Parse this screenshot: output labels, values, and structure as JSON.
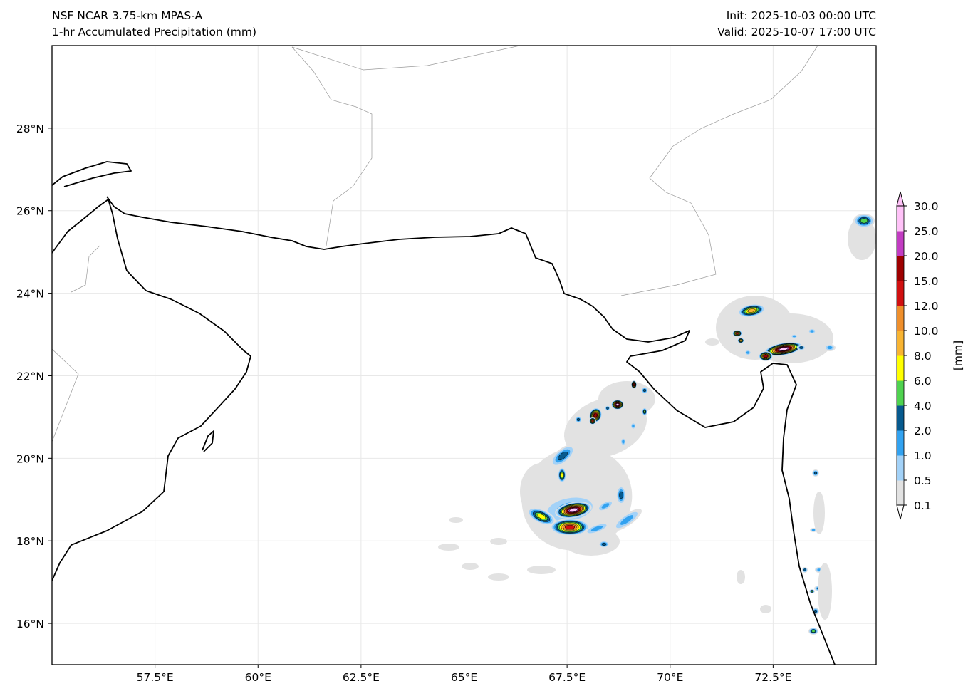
{
  "header": {
    "model": "NSF NCAR 3.75-km MPAS-A",
    "field": "1-hr Accumulated Precipitation (mm)",
    "init": "Init: 2025-10-03 00:00 UTC",
    "valid": "Valid: 2025-10-07 17:00 UTC"
  },
  "map": {
    "extent": {
      "lon": [
        55.0,
        75.0
      ],
      "lat": [
        15.0,
        30.0
      ]
    },
    "lon_ticks": [
      {
        "value": 57.5,
        "label": "57.5°E"
      },
      {
        "value": 60,
        "label": "60°E"
      },
      {
        "value": 62.5,
        "label": "62.5°E"
      },
      {
        "value": 65,
        "label": "65°E"
      },
      {
        "value": 67.5,
        "label": "67.5°E"
      },
      {
        "value": 70,
        "label": "70°E"
      },
      {
        "value": 72.5,
        "label": "72.5°E"
      }
    ],
    "lat_ticks": [
      {
        "value": 28,
        "label": "28°N"
      },
      {
        "value": 26,
        "label": "26°N"
      },
      {
        "value": 24,
        "label": "24°N"
      },
      {
        "value": 22,
        "label": "22°N"
      },
      {
        "value": 20,
        "label": "20°N"
      },
      {
        "value": 18,
        "label": "18°N"
      },
      {
        "value": 16,
        "label": "16°N"
      }
    ]
  },
  "colorbar": {
    "unit": "[mm]",
    "levels": [
      "0.1",
      "0.5",
      "1.0",
      "2.0",
      "4.0",
      "6.0",
      "8.0",
      "10.0",
      "12.0",
      "15.0",
      "20.0",
      "25.0",
      "30.0"
    ],
    "colors": [
      "#e2e2e2",
      "#a3d2f8",
      "#32a2f0",
      "#075a8e",
      "#4fd24f",
      "#ffff00",
      "#f8b432",
      "#ef8f2c",
      "#d01010",
      "#9e0000",
      "#c23cc2",
      "#ffc2f8"
    ]
  }
}
